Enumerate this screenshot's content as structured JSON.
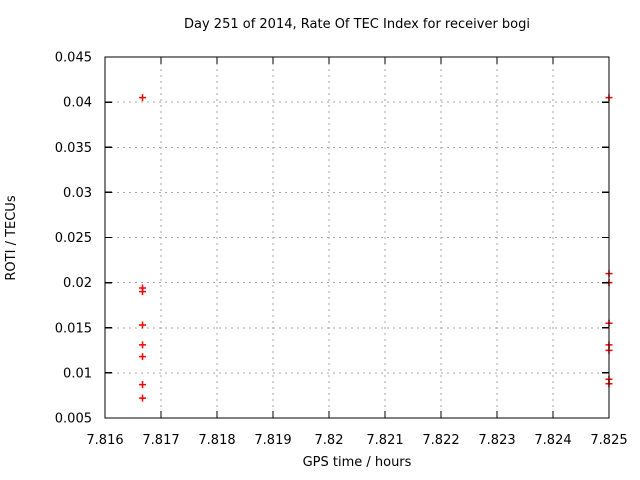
{
  "chart_data": {
    "type": "scatter",
    "title": "Day 251 of 2014, Rate Of TEC Index for receiver bogi",
    "xlabel": "GPS time / hours",
    "ylabel": "ROTI / TECUs",
    "xlim": [
      7.816,
      7.825
    ],
    "ylim": [
      0.005,
      0.045
    ],
    "grid": true,
    "legend": "none",
    "x_ticks": {
      "values": [
        7.816,
        7.817,
        7.818,
        7.819,
        7.82,
        7.821,
        7.822,
        7.823,
        7.824,
        7.825
      ],
      "labels": [
        "7.816",
        "7.817",
        "7.818",
        "7.819",
        "7.82",
        "7.821",
        "7.822",
        "7.823",
        "7.824",
        "7.825"
      ]
    },
    "y_ticks": {
      "values": [
        0.005,
        0.01,
        0.015,
        0.02,
        0.025,
        0.03,
        0.035,
        0.04,
        0.045
      ],
      "labels": [
        "0.005",
        "0.01",
        "0.015",
        "0.02",
        "0.025",
        "0.03",
        "0.035",
        "0.04",
        "0.045"
      ]
    },
    "marker": {
      "shape": "plus",
      "size": 7,
      "color": "#ff0000"
    },
    "series": [
      {
        "name": "ROTI",
        "points": [
          [
            7.81667,
            0.0405
          ],
          [
            7.81667,
            0.0194
          ],
          [
            7.81667,
            0.019
          ],
          [
            7.81667,
            0.0153
          ],
          [
            7.81667,
            0.0131
          ],
          [
            7.81667,
            0.0118
          ],
          [
            7.81667,
            0.0087
          ],
          [
            7.81667,
            0.0072
          ],
          [
            7.825,
            0.0405
          ],
          [
            7.825,
            0.021
          ],
          [
            7.825,
            0.02
          ],
          [
            7.825,
            0.0155
          ],
          [
            7.825,
            0.0131
          ],
          [
            7.825,
            0.0125
          ],
          [
            7.825,
            0.0093
          ],
          [
            7.825,
            0.0088
          ]
        ]
      }
    ]
  },
  "colors": {
    "background": "#ffffff",
    "marker": "#ff0000",
    "grid": "#a5a5a5",
    "axis": "#000000",
    "text": "#000000"
  }
}
